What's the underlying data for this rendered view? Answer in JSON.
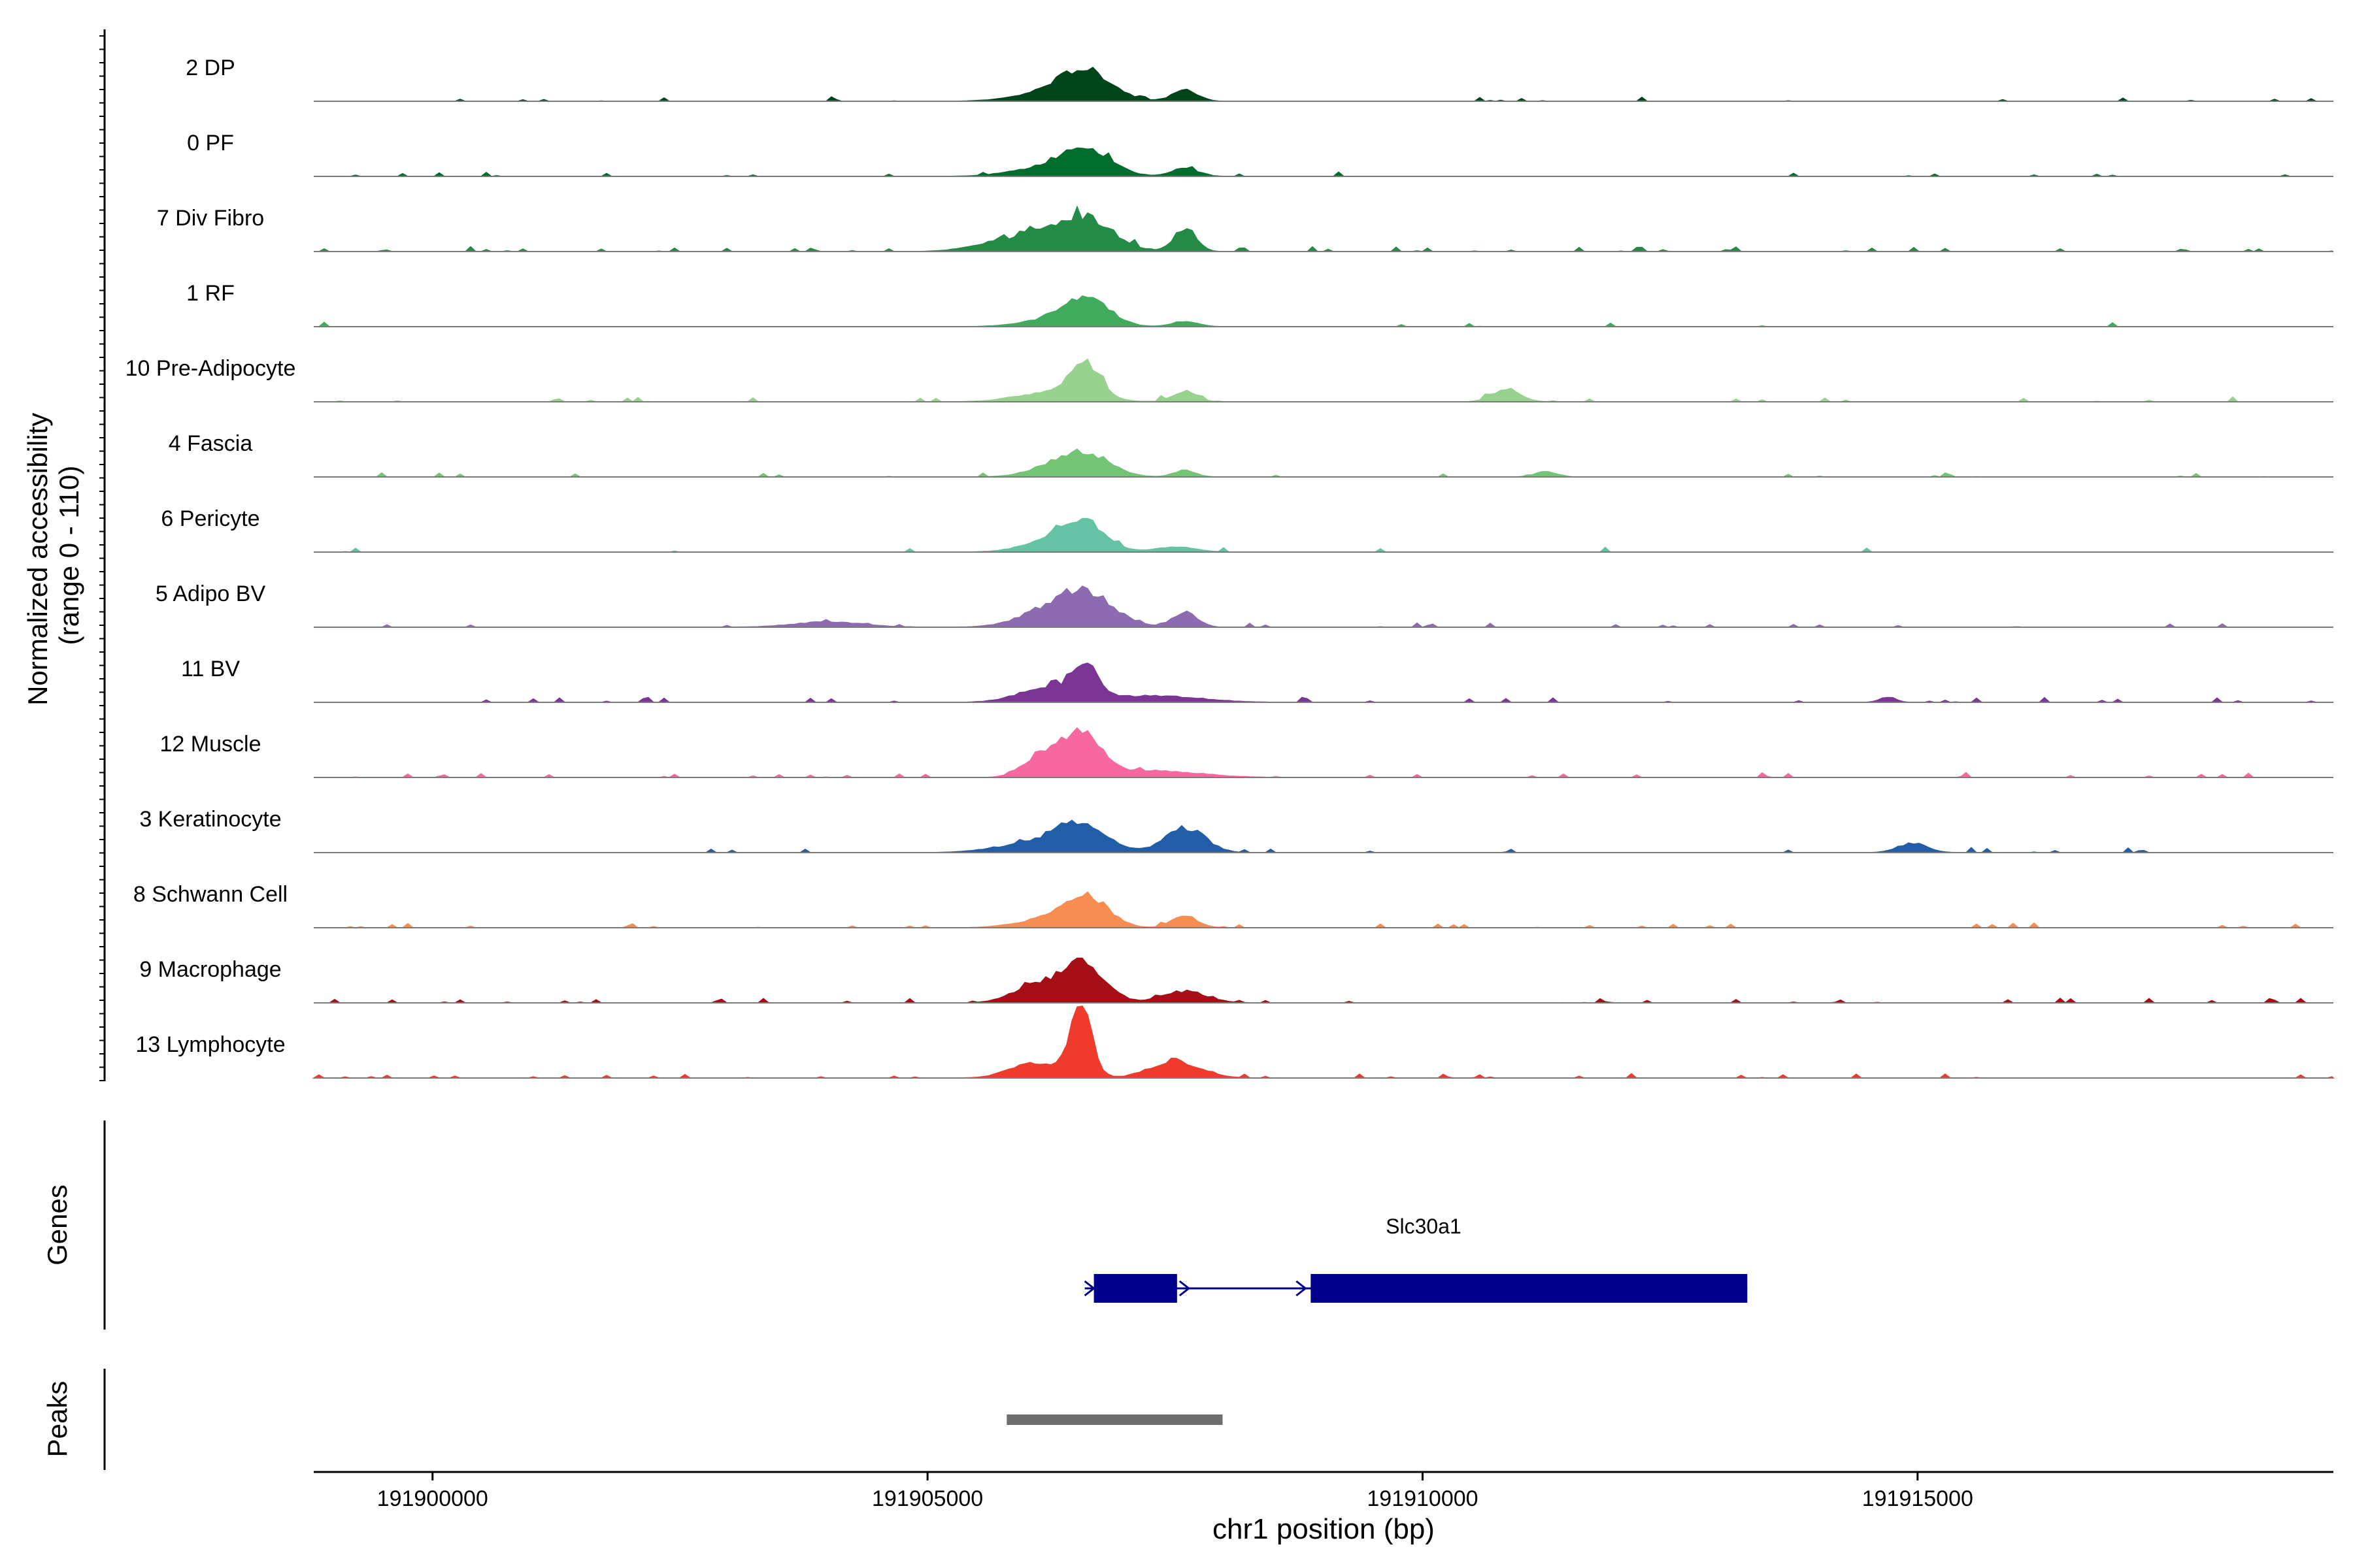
{
  "chart_data": {
    "type": "area",
    "title": "",
    "ylabel_line1": "Normalized accessibility",
    "ylabel_line2": "(range 0 - 110)",
    "xlabel": "chr1 position (bp)",
    "xlim": [
      191898800,
      191919200
    ],
    "ylim": [
      0,
      110
    ],
    "x_ticks": [
      191900000,
      191905000,
      191910000,
      191915000
    ],
    "x_tick_labels": [
      "191900000",
      "191905000",
      "191910000",
      "191915000"
    ],
    "genes_label": "Genes",
    "peaks_label": "Peaks",
    "series": [
      {
        "name": "2 DP",
        "color": "#00441b",
        "peaks": [
          [
            191906600,
            42,
            260
          ],
          [
            191906250,
            12,
            350
          ],
          [
            191907600,
            16,
            130
          ]
        ],
        "noise": 0.05
      },
      {
        "name": "0 PF",
        "color": "#006d2c",
        "peaks": [
          [
            191906600,
            40,
            250
          ],
          [
            191906200,
            12,
            350
          ],
          [
            191907600,
            12,
            140
          ]
        ],
        "noise": 0.05
      },
      {
        "name": "7 Div Fibro",
        "color": "#238b45",
        "peaks": [
          [
            191906600,
            45,
            280
          ],
          [
            191906150,
            20,
            350
          ],
          [
            191907600,
            36,
            110
          ],
          [
            191905700,
            8,
            300
          ]
        ],
        "noise": 0.12
      },
      {
        "name": "1 RF",
        "color": "#41ab5d",
        "peaks": [
          [
            191906600,
            44,
            230
          ],
          [
            191906200,
            8,
            300
          ],
          [
            191907600,
            8,
            130
          ]
        ],
        "noise": 0.04
      },
      {
        "name": "10 Pre-Adipocyte",
        "color": "#98d28f",
        "peaks": [
          [
            191906600,
            48,
            150
          ],
          [
            191906300,
            16,
            350
          ],
          [
            191907600,
            16,
            120
          ],
          [
            191910850,
            20,
            140
          ]
        ],
        "noise": 0.06
      },
      {
        "name": "4 Fascia",
        "color": "#74c476",
        "peaks": [
          [
            191906600,
            34,
            250
          ],
          [
            191906250,
            12,
            250
          ],
          [
            191907600,
            10,
            110
          ],
          [
            191911250,
            8,
            110
          ]
        ],
        "noise": 0.05
      },
      {
        "name": "6 Pericyte",
        "color": "#66c2a4",
        "peaks": [
          [
            191906550,
            46,
            230
          ],
          [
            191906200,
            12,
            280
          ],
          [
            191907500,
            8,
            200
          ]
        ],
        "noise": 0.04
      },
      {
        "name": "5 Adipo BV",
        "color": "#8c6bb1",
        "peaks": [
          [
            191906600,
            48,
            280
          ],
          [
            191906200,
            20,
            300
          ],
          [
            191907600,
            24,
            120
          ],
          [
            191904000,
            8,
            350
          ]
        ],
        "noise": 0.07
      },
      {
        "name": "11 BV",
        "color": "#7a3595",
        "peaks": [
          [
            191906600,
            50,
            120
          ],
          [
            191906250,
            24,
            300
          ],
          [
            191907300,
            10,
            450
          ],
          [
            191914700,
            8,
            80
          ]
        ],
        "noise": 0.1
      },
      {
        "name": "12 Muscle",
        "color": "#f768a1",
        "peaks": [
          [
            191906550,
            68,
            200
          ],
          [
            191906150,
            32,
            180
          ],
          [
            191907300,
            10,
            450
          ]
        ],
        "noise": 0.12
      },
      {
        "name": "3 Keratinocyte",
        "color": "#225ea8",
        "peaks": [
          [
            191906550,
            40,
            260
          ],
          [
            191906050,
            14,
            350
          ],
          [
            191907600,
            38,
            200
          ],
          [
            191914950,
            14,
            150
          ]
        ],
        "noise": 0.06
      },
      {
        "name": "8 Schwann Cell",
        "color": "#f88d52",
        "peaks": [
          [
            191906600,
            46,
            220
          ],
          [
            191906200,
            12,
            300
          ],
          [
            191907600,
            18,
            130
          ]
        ],
        "noise": 0.07
      },
      {
        "name": "9 Macrophage",
        "color": "#a50f15",
        "peaks": [
          [
            191906550,
            60,
            230
          ],
          [
            191906050,
            22,
            220
          ],
          [
            191907600,
            18,
            220
          ]
        ],
        "noise": 0.1
      },
      {
        "name": "13 Lymphocyte",
        "color": "#ef3b2c",
        "peaks": [
          [
            191906550,
            100,
            110
          ],
          [
            191906100,
            24,
            250
          ],
          [
            191907500,
            26,
            250
          ]
        ],
        "noise": 0.1
      }
    ],
    "genes": [
      {
        "name": "Slc30a1",
        "color": "#00008b",
        "start": 191906680,
        "end": 191913280,
        "exons": [
          [
            191906680,
            191907520
          ],
          [
            191908870,
            191913280
          ]
        ],
        "strand": "+"
      }
    ],
    "peaks": [
      {
        "start": 191905800,
        "end": 191907980,
        "color": "#6e6e6e"
      }
    ]
  }
}
